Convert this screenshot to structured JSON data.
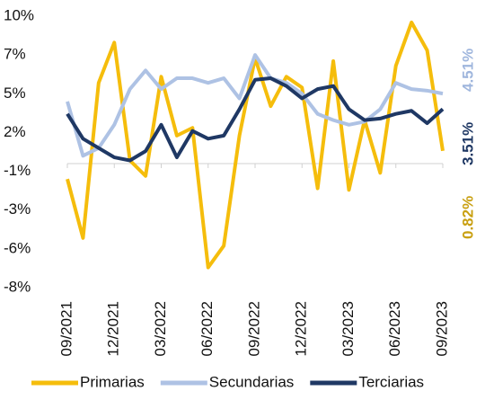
{
  "chart_data": {
    "type": "line",
    "categories": [
      "09/2021",
      null,
      null,
      "12/2021",
      null,
      null,
      "03/2022",
      null,
      null,
      "06/2022",
      null,
      null,
      "09/2022",
      null,
      null,
      "12/2022",
      null,
      null,
      "03/2023",
      null,
      null,
      "06/2023",
      null,
      null,
      "09/2023"
    ],
    "series": [
      {
        "name": "Primarias",
        "color": "#f5bd0c",
        "label_color": "#c9a012",
        "values": [
          -1,
          -4.8,
          5.2,
          7.8,
          0.2,
          -0.8,
          5.6,
          1.8,
          2.3,
          -6.7,
          -5.3,
          1.8,
          6.8,
          3.7,
          5.6,
          4.9,
          -1.6,
          6.6,
          -1.7,
          2.8,
          -0.6,
          6.3,
          9.1,
          7.3,
          0.82
        ],
        "value_labels": [
          null,
          null,
          null,
          null,
          null,
          null,
          null,
          null,
          null,
          null,
          null,
          null,
          null,
          null,
          null,
          null,
          null,
          null,
          null,
          null,
          null,
          null,
          null,
          null,
          "0.82%"
        ]
      },
      {
        "name": "Secundarias",
        "color": "#aec2e4",
        "label_color": "#9fb6dd",
        "values": [
          4,
          0.5,
          1,
          2.5,
          4.8,
          6,
          4.8,
          5.5,
          5.5,
          5.2,
          5.5,
          4.2,
          7,
          5.5,
          5.2,
          4.5,
          3.2,
          2.8,
          2.5,
          2.7,
          3.5,
          5.2,
          4.8,
          4.7,
          4.51
        ],
        "value_labels": [
          null,
          null,
          null,
          null,
          null,
          null,
          null,
          null,
          null,
          null,
          null,
          null,
          null,
          null,
          null,
          null,
          null,
          null,
          null,
          null,
          null,
          null,
          null,
          null,
          "4.51%"
        ]
      },
      {
        "name": "Terciarias",
        "color": "#1f3864",
        "label_color": "#1f3864",
        "values": [
          3.2,
          1.6,
          1,
          0.4,
          0.2,
          0.8,
          2.5,
          0.4,
          2.1,
          1.6,
          1.8,
          3.5,
          5.4,
          5.5,
          5,
          4.2,
          4.8,
          5,
          3.5,
          2.8,
          2.9,
          3.2,
          3.4,
          2.6,
          3.51
        ],
        "value_labels": [
          null,
          null,
          null,
          null,
          null,
          null,
          null,
          null,
          null,
          null,
          null,
          null,
          null,
          null,
          null,
          null,
          null,
          null,
          null,
          null,
          null,
          null,
          null,
          null,
          "3.51%"
        ]
      }
    ],
    "ylim": [
      -8,
      9.5
    ],
    "yticks": [
      {
        "value": 9.5,
        "label": "10%"
      },
      {
        "value": 7,
        "label": "7%"
      },
      {
        "value": 4.5,
        "label": "5%"
      },
      {
        "value": 2,
        "label": "2%"
      },
      {
        "value": -0.5,
        "label": "-1%"
      },
      {
        "value": -3,
        "label": "-3%"
      },
      {
        "value": -5.5,
        "label": "-6%"
      },
      {
        "value": -8,
        "label": "-8%"
      }
    ],
    "grid": false,
    "legend": "bottom"
  }
}
